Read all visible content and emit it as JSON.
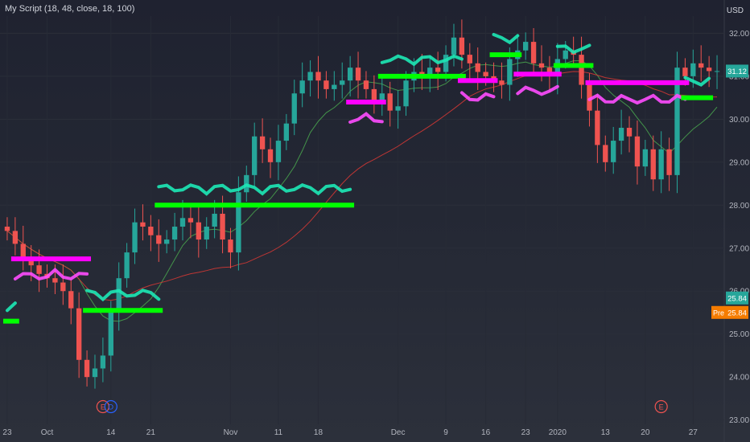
{
  "legend": {
    "script_name": "My Script",
    "params": "(18, 48, close, 18, 100)"
  },
  "price_scale": {
    "currency": "USD"
  },
  "badges": [
    {
      "label": "",
      "value": "31.12",
      "color": "#26a69a",
      "price": 31.12
    },
    {
      "label": "",
      "value": "25.84",
      "color": "#26a69a",
      "price": 25.84
    },
    {
      "label": "Pre",
      "value": "25.84",
      "color": "#f57c00",
      "price": 25.84
    }
  ],
  "events": [
    {
      "letter": "E",
      "color": "#ef5350",
      "date_index": 12
    },
    {
      "letter": "D",
      "color": "#2962ff",
      "date_index": 13
    },
    {
      "letter": "E",
      "color": "#ef5350",
      "date_index": 82
    }
  ],
  "colors": {
    "up": "#26a69a",
    "down": "#ef5350",
    "green_level": "#00ff00",
    "magenta_level": "#ff00ff",
    "bands": "#ff4dff"
  },
  "chart_data": {
    "type": "line",
    "ylim": [
      22.9,
      32.4
    ],
    "y_ticks": [
      "23.00",
      "24.00",
      "25.00",
      "26.00",
      "27.00",
      "28.00",
      "29.00",
      "30.00",
      "31.00",
      "32.00"
    ],
    "x_ticks": [
      {
        "label": "23",
        "index": 0
      },
      {
        "label": "Oct",
        "index": 5
      },
      {
        "label": "14",
        "index": 13
      },
      {
        "label": "21",
        "index": 18
      },
      {
        "label": "Nov",
        "index": 28
      },
      {
        "label": "11",
        "index": 34
      },
      {
        "label": "18",
        "index": 39
      },
      {
        "label": "Dec",
        "index": 49
      },
      {
        "label": "9",
        "index": 55
      },
      {
        "label": "16",
        "index": 60
      },
      {
        "label": "23",
        "index": 65
      },
      {
        "label": "2020",
        "index": 69
      },
      {
        "label": "13",
        "index": 75
      },
      {
        "label": "20",
        "index": 80
      },
      {
        "label": "27",
        "index": 86
      }
    ],
    "bar_count": 90,
    "series": [
      {
        "kind": "close",
        "values": [
          27.4,
          27.1,
          26.8,
          26.6,
          26.4,
          26.3,
          26.2,
          26.0,
          25.6,
          24.4,
          24.0,
          24.2,
          24.5,
          25.5,
          26.3,
          26.9,
          27.6,
          27.5,
          27.3,
          27.1,
          27.2,
          27.5,
          27.7,
          27.6,
          27.2,
          27.5,
          27.8,
          27.2,
          26.9,
          28.3,
          28.7,
          29.6,
          29.3,
          29.0,
          29.5,
          29.9,
          30.6,
          30.9,
          31.1,
          30.9,
          30.7,
          30.8,
          30.9,
          31.2,
          30.9,
          30.7,
          30.4,
          30.6,
          30.2,
          30.3,
          30.9,
          31.1,
          31.0,
          31.2,
          31.1,
          31.5,
          31.9,
          31.5,
          31.3,
          31.1,
          31.0,
          30.9,
          30.8,
          31.4,
          31.6,
          31.8,
          31.3,
          31.2,
          31.0,
          31.4,
          31.6,
          31.5,
          30.8,
          30.2,
          29.4,
          29.0,
          29.5,
          29.8,
          29.6,
          28.9,
          29.3,
          28.6,
          29.3,
          28.7,
          31.2,
          31.0,
          31.3,
          31.2,
          31.12,
          31.12
        ]
      }
    ],
    "levels": [
      {
        "color": "green",
        "price": 25.3,
        "from": 0,
        "to": 1
      },
      {
        "color": "magenta",
        "price": 26.75,
        "from": 1,
        "to": 10
      },
      {
        "color": "green",
        "price": 25.55,
        "from": 10,
        "to": 19
      },
      {
        "color": "green",
        "price": 28.0,
        "from": 19,
        "to": 43
      },
      {
        "color": "magenta",
        "price": 30.4,
        "from": 43,
        "to": 47
      },
      {
        "color": "green",
        "price": 31.0,
        "from": 47,
        "to": 57
      },
      {
        "color": "magenta",
        "price": 30.9,
        "from": 57,
        "to": 61
      },
      {
        "color": "green",
        "price": 31.5,
        "from": 61,
        "to": 64
      },
      {
        "color": "magenta",
        "price": 31.05,
        "from": 64,
        "to": 69
      },
      {
        "color": "green",
        "price": 31.25,
        "from": 69,
        "to": 73
      },
      {
        "color": "magenta",
        "price": 30.85,
        "from": 73,
        "to": 85
      },
      {
        "color": "green",
        "price": 30.5,
        "from": 85,
        "to": 88
      }
    ]
  }
}
